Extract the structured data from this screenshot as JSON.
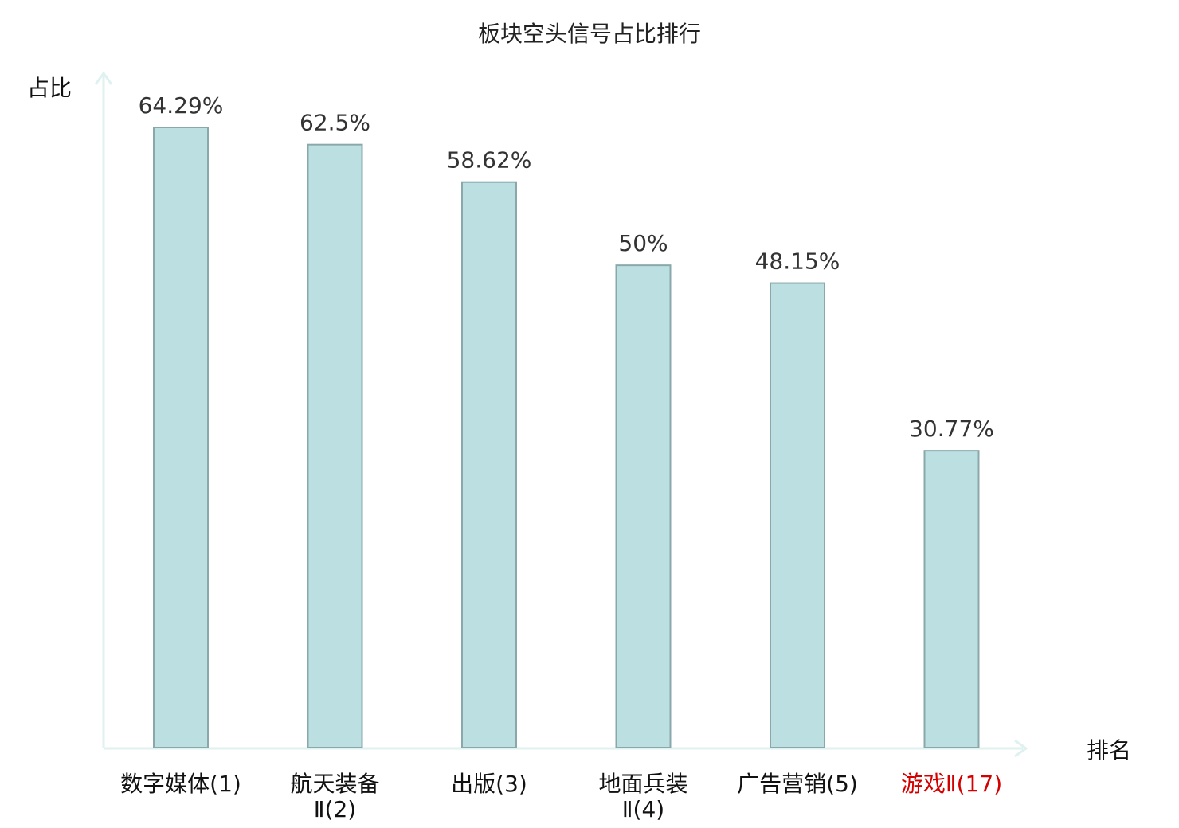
{
  "chart_data": {
    "type": "bar",
    "title": "板块空头信号占比排行",
    "ylabel": "占比",
    "xlabel": "排名",
    "ylim": [
      0,
      70
    ],
    "grid": false,
    "categories": [
      {
        "name": "数字媒体",
        "rank_suffix": "(1)",
        "line2": "",
        "highlight": false
      },
      {
        "name": "航天装备",
        "rank_suffix": "",
        "line2": "Ⅱ(2)",
        "highlight": false
      },
      {
        "name": "出版",
        "rank_suffix": "(3)",
        "line2": "",
        "highlight": false
      },
      {
        "name": "地面兵装",
        "rank_suffix": "",
        "line2": "Ⅱ(4)",
        "highlight": false
      },
      {
        "name": "广告营销",
        "rank_suffix": "(5)",
        "line2": "",
        "highlight": false
      },
      {
        "name": "游戏Ⅱ",
        "rank_suffix": "(17)",
        "line2": "",
        "highlight": true
      }
    ],
    "values": [
      64.29,
      62.5,
      58.62,
      50,
      48.15,
      30.77
    ],
    "value_labels": [
      "64.29%",
      "62.5%",
      "58.62%",
      "50%",
      "48.15%",
      "30.77%"
    ],
    "colors": {
      "bar_fill": "#bce0e2",
      "bar_stroke": "#8aa8aa",
      "axis": "#dff2ef",
      "highlight_text": "#d40000"
    }
  }
}
